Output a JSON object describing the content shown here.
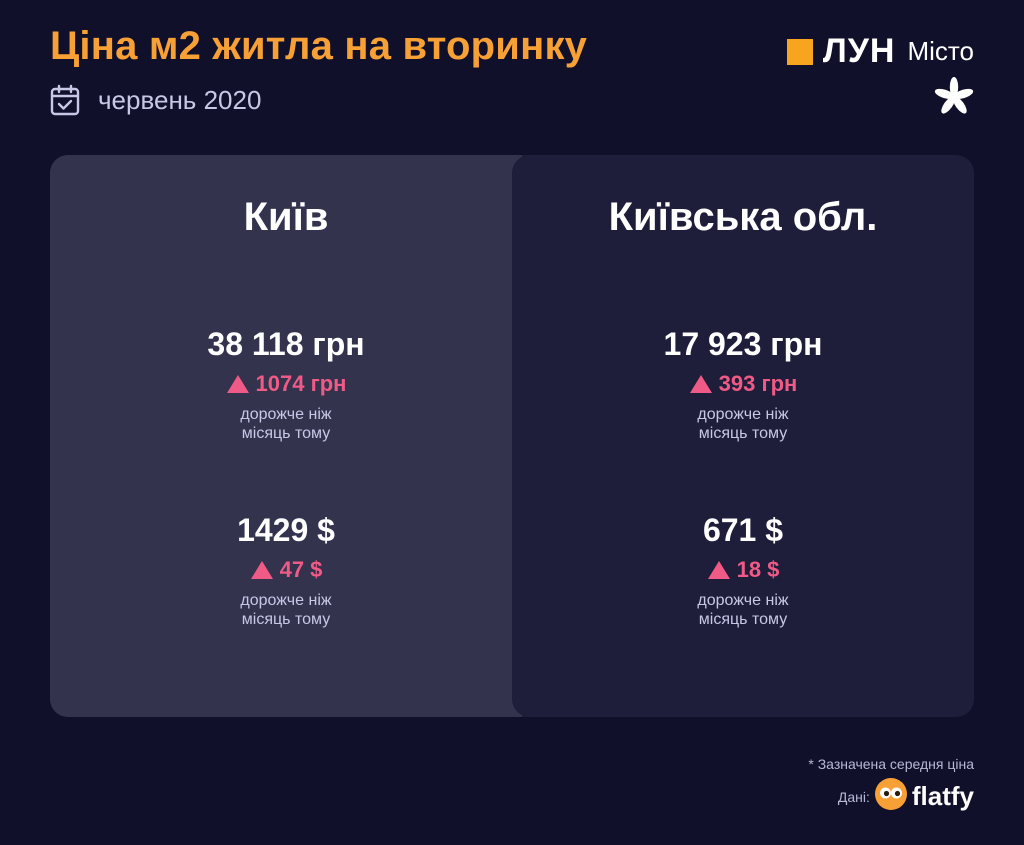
{
  "header": {
    "title": "Ціна м2 житла на вторинку",
    "date": "червень 2020",
    "calendar_icon": "calendar-icon"
  },
  "brand": {
    "name": "ЛУН",
    "suffix": "Місто",
    "square_color": "#f7a41e",
    "emblem_icon": "chestnut-leaf-icon"
  },
  "colors": {
    "title": "#f7a035",
    "increase": "#f05a86",
    "background": "#11102a"
  },
  "regions": [
    {
      "name": "Київ",
      "uah": {
        "price": "38 118 грн",
        "change": "1074 грн",
        "note_line1": "дорожче ніж",
        "note_line2": "місяць тому"
      },
      "usd": {
        "price": "1429 $",
        "change": "47 $",
        "note_line1": "дорожче ніж",
        "note_line2": "місяць тому"
      }
    },
    {
      "name": "Київська обл.",
      "uah": {
        "price": "17 923 грн",
        "change": "393 грн",
        "note_line1": "дорожче ніж",
        "note_line2": "місяць тому"
      },
      "usd": {
        "price": "671 $",
        "change": "18 $",
        "note_line1": "дорожче ніж",
        "note_line2": "місяць тому"
      }
    }
  ],
  "footer": {
    "footnote": "* Зазначена середня ціна",
    "source_label": "Дані:",
    "source_name": "flatfy",
    "source_icon": "owl-eyes-icon"
  }
}
